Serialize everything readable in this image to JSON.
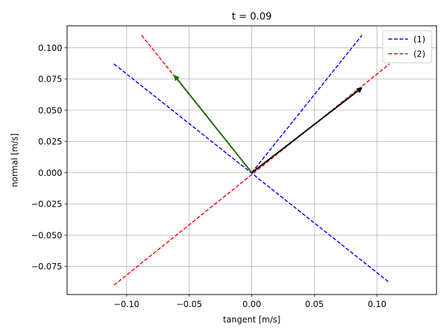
{
  "chart_data": {
    "type": "line",
    "title": "t = 0.09",
    "xlabel": "tangent [m/s]",
    "ylabel": "normal [m/s]",
    "xlim": [
      -0.1475,
      0.1475
    ],
    "ylim": [
      -0.0975,
      0.1175
    ],
    "grid": true,
    "legend_position": "top-right",
    "x_ticks": [
      -0.1,
      -0.05,
      0.0,
      0.05,
      0.1
    ],
    "x_tick_labels": [
      "−0.10",
      "−0.05",
      "0.00",
      "0.05",
      "0.10"
    ],
    "y_ticks": [
      -0.075,
      -0.05,
      -0.025,
      0.0,
      0.025,
      0.05,
      0.075,
      0.1
    ],
    "y_tick_labels": [
      "−0.075",
      "−0.050",
      "−0.025",
      "0.000",
      "0.025",
      "0.050",
      "0.075",
      "0.100"
    ],
    "series": [
      {
        "name": "(1)",
        "color": "#0000ff",
        "style": "dashed",
        "segments": [
          {
            "x": [
              0.0,
              0.088
            ],
            "y": [
              0.0,
              0.11
            ]
          },
          {
            "x": [
              -0.11,
              0.11
            ],
            "y": [
              0.087,
              -0.088
            ]
          }
        ]
      },
      {
        "name": "(2)",
        "color": "#ff0000",
        "style": "dashed",
        "segments": [
          {
            "x": [
              -0.088,
              0.0
            ],
            "y": [
              0.11,
              0.0
            ]
          },
          {
            "x": [
              -0.11,
              0.11
            ],
            "y": [
              -0.09,
              0.087
            ]
          }
        ]
      }
    ],
    "arrows": [
      {
        "name": "black-arrow",
        "color": "#000000",
        "from": [
          0.0,
          0.0
        ],
        "to": [
          0.088,
          0.068
        ]
      },
      {
        "name": "green-arrow",
        "color": "#1a6e00",
        "from": [
          0.0,
          0.0
        ],
        "to": [
          -0.062,
          0.078
        ]
      }
    ]
  }
}
